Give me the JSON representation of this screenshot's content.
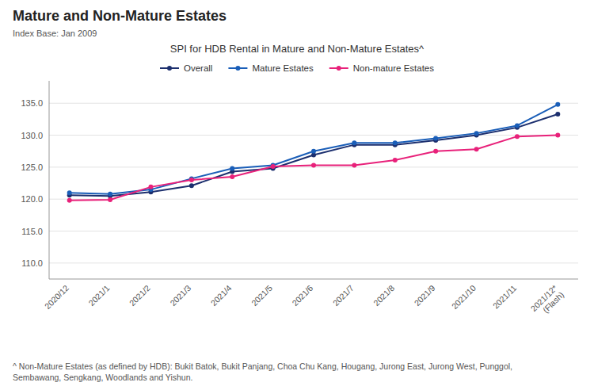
{
  "chart_data": {
    "type": "line",
    "title": "Mature and Non-Mature Estates",
    "subtitle": "SPI for HDB Rental in Mature and Non-Mature Estates^",
    "annotations": [
      "Index Base: Jan 2009",
      "^ Non-Mature Estates (as defined by HDB): Bukit Batok, Bukit Panjang, Choa Chu Kang, Hougang, Jurong East, Jurong West, Punggol,\nSembawang, Sengkang, Woodlands and Yishun."
    ],
    "categories": [
      "2020/12",
      "2021/1",
      "2021/2",
      "2021/3",
      "2021/4",
      "2021/5",
      "2021/6",
      "2021/7",
      "2021/8",
      "2021/9",
      "2021/10",
      "2021/11",
      "2021/12*\n(Flash)"
    ],
    "series": [
      {
        "name": "Overall",
        "color": "#1c2f6e",
        "values": [
          120.6,
          120.5,
          121.1,
          122.1,
          124.3,
          124.8,
          126.9,
          128.5,
          128.5,
          129.2,
          130.0,
          131.2,
          133.3
        ]
      },
      {
        "name": "Mature Estates",
        "color": "#1a5eb8",
        "values": [
          121.0,
          120.8,
          121.5,
          123.2,
          124.8,
          125.3,
          127.5,
          128.8,
          128.8,
          129.5,
          130.3,
          131.5,
          134.8
        ]
      },
      {
        "name": "Non-mature Estates",
        "color": "#e8217a",
        "values": [
          119.8,
          119.9,
          121.9,
          123.0,
          123.5,
          125.1,
          125.3,
          125.3,
          126.1,
          127.5,
          127.8,
          129.8,
          130.0
        ]
      }
    ],
    "ylim": [
      107.5,
      138.5
    ],
    "yticks": [
      {
        "value": 110.0,
        "label": "110.0"
      },
      {
        "value": 115.0,
        "label": "115.0"
      },
      {
        "value": 120.0,
        "label": "120.0"
      },
      {
        "value": 125.0,
        "label": "125.0"
      },
      {
        "value": 130.0,
        "label": "130.0"
      },
      {
        "value": 135.0,
        "label": "135.0"
      }
    ],
    "grid": true,
    "legend": "top",
    "marker": "circle"
  }
}
